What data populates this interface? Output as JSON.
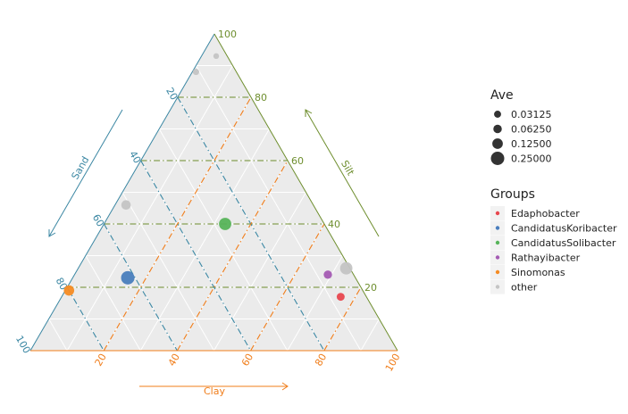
{
  "chart_data": {
    "type": "scatter",
    "subtype": "ternary",
    "axes": {
      "silt": {
        "label": "Silt",
        "color": "#6e8e2e",
        "ticks": [
          20,
          40,
          60,
          80,
          100
        ],
        "line_color": "#6e8e2e"
      },
      "sand": {
        "label": "Sand",
        "color": "#3b87a3",
        "ticks": [
          20,
          40,
          60,
          80,
          100
        ],
        "line_color": "#3b87a3"
      },
      "clay": {
        "label": "Clay",
        "color": "#f07d1a",
        "ticks": [
          20,
          40,
          60,
          80,
          100
        ],
        "line_color": "#f07d1a"
      }
    },
    "grid": true,
    "size_legend": {
      "title": "Ave",
      "entries": [
        {
          "label": "0.03125",
          "value": 0.03125
        },
        {
          "label": "0.06250",
          "value": 0.0625
        },
        {
          "label": "0.12500",
          "value": 0.125
        },
        {
          "label": "0.25000",
          "value": 0.25
        }
      ]
    },
    "color_legend": {
      "title": "Groups",
      "entries": [
        {
          "label": "Edaphobacter",
          "color": "#e8474f"
        },
        {
          "label": "CandidatusKoribacter",
          "color": "#4a7ebd"
        },
        {
          "label": "CandidatusSolibacter",
          "color": "#57b45a"
        },
        {
          "label": "Rathayibacter",
          "color": "#a45bb3"
        },
        {
          "label": "Sinomonas",
          "color": "#f58c24"
        },
        {
          "label": "other",
          "color": "#c4c4c4"
        }
      ]
    },
    "points": [
      {
        "group": "other",
        "silt": 93,
        "sand": 3,
        "clay": 4,
        "ave": 0.012
      },
      {
        "group": "other",
        "silt": 88,
        "sand": 11,
        "clay": 1,
        "ave": 0.02
      },
      {
        "group": "other",
        "silt": 46,
        "sand": 51,
        "clay": 3,
        "ave": 0.09
      },
      {
        "group": "CandidatusSolibacter",
        "silt": 40,
        "sand": 27,
        "clay": 33,
        "ave": 0.2
      },
      {
        "group": "CandidatusKoribacter",
        "silt": 23,
        "sand": 62,
        "clay": 15,
        "ave": 0.25
      },
      {
        "group": "Sinomonas",
        "silt": 19,
        "sand": 80,
        "clay": 1,
        "ave": 0.12
      },
      {
        "group": "other",
        "silt": 26,
        "sand": 1,
        "clay": 73,
        "ave": 0.2
      },
      {
        "group": "Rathayibacter",
        "silt": 24,
        "sand": 7,
        "clay": 69,
        "ave": 0.06
      },
      {
        "group": "Edaphobacter",
        "silt": 17,
        "sand": 7,
        "clay": 76,
        "ave": 0.05
      }
    ]
  }
}
